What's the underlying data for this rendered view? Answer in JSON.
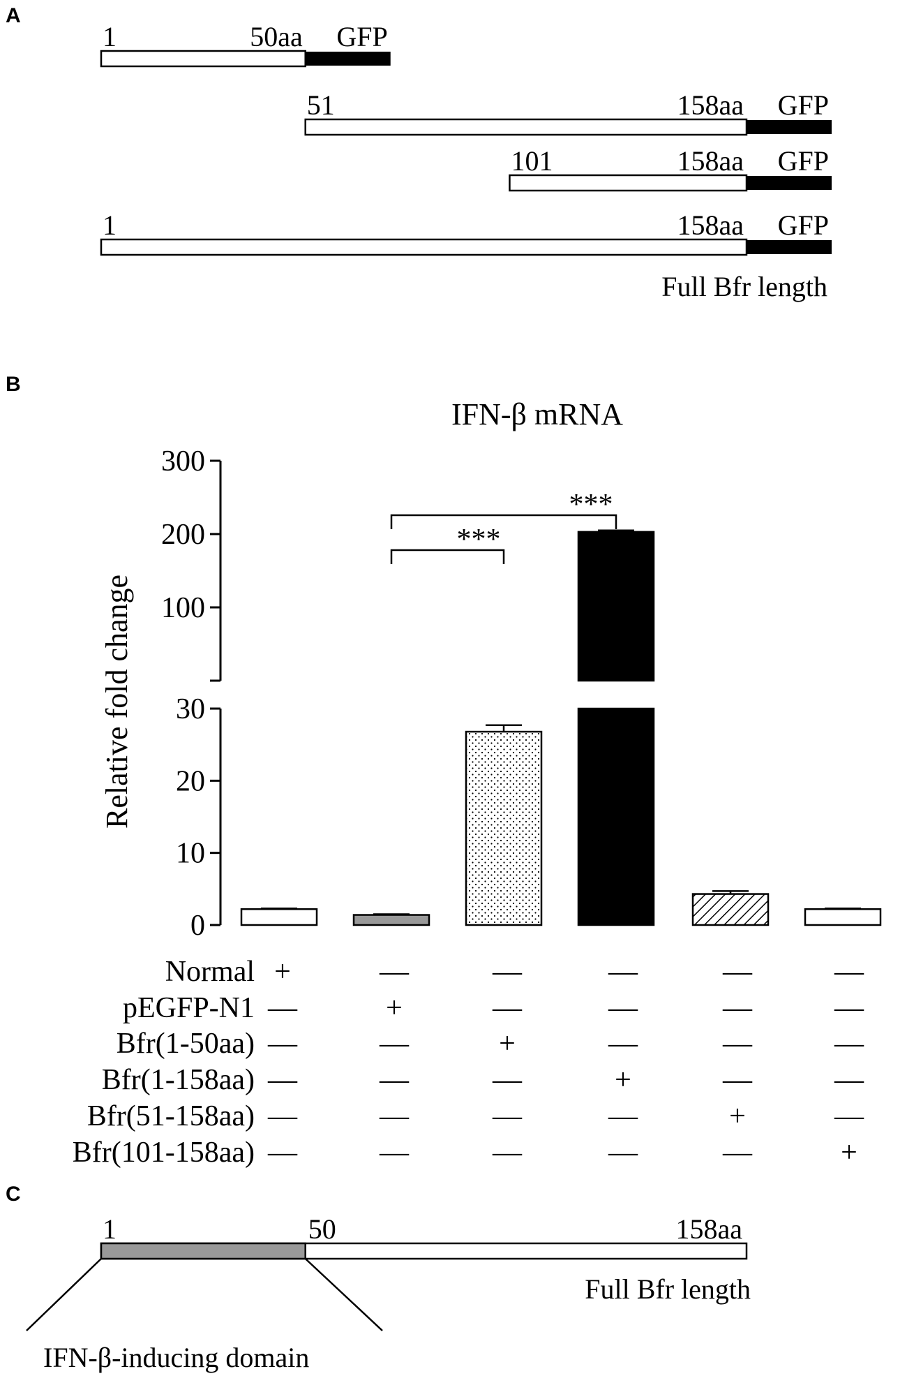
{
  "panels": {
    "a_label": "A",
    "b_label": "B",
    "c_label": "C"
  },
  "constructs": [
    {
      "start_label": "1",
      "end_label": "50aa",
      "tag": "GFP",
      "start": 1,
      "end": 50
    },
    {
      "start_label": "51",
      "end_label": "158aa",
      "tag": "GFP",
      "start": 51,
      "end": 158
    },
    {
      "start_label": "101",
      "end_label": "158aa",
      "tag": "GFP",
      "start": 101,
      "end": 158
    },
    {
      "start_label": "1",
      "end_label": "158aa",
      "tag": "GFP",
      "start": 1,
      "end": 158
    }
  ],
  "full_length_label_a": "Full Bfr length",
  "chart_data": {
    "type": "bar",
    "title": "IFN-β mRNA",
    "ylabel": "Relative fold change",
    "xlabel": "",
    "ylim_lower": [
      0,
      30
    ],
    "ylim_upper": [
      0,
      300
    ],
    "y_ticks_lower": [
      "0",
      "10",
      "20",
      "30"
    ],
    "y_ticks_upper": [
      "100",
      "200",
      "300"
    ],
    "axis_break": true,
    "grid": false,
    "categories": [
      "Normal",
      "pEGFP-N1",
      "Bfr(1-50aa)",
      "Bfr(1-158aa)",
      "Bfr(51-158aa)",
      "Bfr(101-158aa)"
    ],
    "values": [
      2.2,
      1.4,
      26.8,
      203,
      4.3,
      2.2
    ],
    "errors": [
      0.1,
      0.1,
      0.9,
      2,
      0.4,
      0.1
    ],
    "fills": [
      "#ffffff",
      "#999999",
      "dots",
      "#000000",
      "hatch",
      "#ffffff"
    ],
    "condition_rows": [
      {
        "label": "Normal",
        "signs": [
          "+",
          "—",
          "—",
          "—",
          "—",
          "—"
        ]
      },
      {
        "label": "pEGFP-N1",
        "signs": [
          "—",
          "+",
          "—",
          "—",
          "—",
          "—"
        ]
      },
      {
        "label": "Bfr(1-50aa)",
        "signs": [
          "—",
          "—",
          "+",
          "—",
          "—",
          "—"
        ]
      },
      {
        "label": "Bfr(1-158aa)",
        "signs": [
          "—",
          "—",
          "—",
          "+",
          "—",
          "—"
        ]
      },
      {
        "label": "Bfr(51-158aa)",
        "signs": [
          "—",
          "—",
          "—",
          "—",
          "+",
          "—"
        ]
      },
      {
        "label": "Bfr(101-158aa)",
        "signs": [
          "—",
          "—",
          "—",
          "—",
          "—",
          "+"
        ]
      }
    ],
    "significance": [
      {
        "from": 1,
        "to": 2,
        "label": "***"
      },
      {
        "from": 1,
        "to": 3,
        "label": "***"
      }
    ]
  },
  "domain_map": {
    "start_label": "1",
    "mid_label": "50",
    "end_label": "158aa",
    "full_length_label": "Full Bfr length",
    "domain_label": "IFN-β-inducing domain",
    "domain_start": 1,
    "domain_end": 50,
    "total_length": 158
  },
  "colors": {
    "gfp": "#000000",
    "domain": "#999999",
    "outline": "#000000"
  }
}
